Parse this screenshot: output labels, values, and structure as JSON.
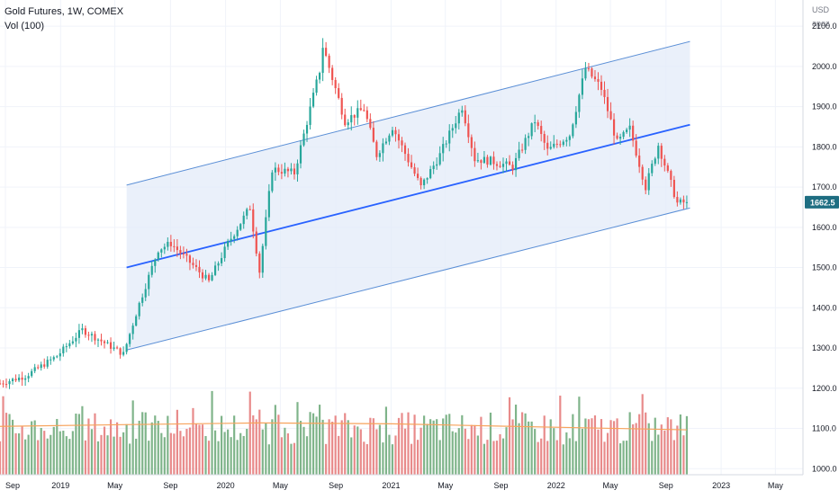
{
  "legend": {
    "symbol_line": "Gold Futures, 1W, COMEX",
    "volume_line": "Vol (100)"
  },
  "price_axis": {
    "currency": "USD",
    "scale_mode": "apoz",
    "tick_labels": [
      "2100.0",
      "2000.0",
      "1900.0",
      "1800.0",
      "1700.0",
      "1600.0",
      "1500.0",
      "1400.0",
      "1300.0",
      "1200.0",
      "1100.0",
      "1000.0"
    ],
    "last_price_label": "1662.5"
  },
  "time_axis": {
    "tick_labels": [
      "Sep",
      "2019",
      "May",
      "Sep",
      "2020",
      "May",
      "Sep",
      "2021",
      "May",
      "Sep",
      "2022",
      "May",
      "Sep",
      "2023",
      "May"
    ]
  },
  "colors": {
    "up_candle": "#26a69a",
    "down_candle": "#ef5350",
    "up_volume": "#7fb48a",
    "down_volume": "#e88a8a",
    "volume_ma": "#f7a35c",
    "channel_line": "#5b8fd6",
    "channel_mid": "#2962ff",
    "channel_fill": "#e3ebf8",
    "last_price_badge": "#1e6e82",
    "grid": "#f0f3fa"
  },
  "chart_data": {
    "type": "candlestick",
    "timeframe": "1W",
    "instrument": "Gold Futures",
    "exchange": "COMEX",
    "y_range": [
      985,
      2165
    ],
    "x_range": [
      "2018-08-20",
      "2023-07-01"
    ],
    "volume_indicator": "Vol (100)",
    "last_price": 1662.5,
    "trend_channel": {
      "start_date": "2019-05-27",
      "end_date": "2022-10-24",
      "lower_start": 1295,
      "lower_end": 1648,
      "middle_start": 1500,
      "middle_end": 1855,
      "upper_start": 1705,
      "upper_end": 2062
    },
    "price_path": [
      {
        "date": "2018-08-20",
        "close": 1212
      },
      {
        "date": "2018-10-15",
        "close": 1230
      },
      {
        "date": "2018-12-24",
        "close": 1280
      },
      {
        "date": "2019-02-18",
        "close": 1345
      },
      {
        "date": "2019-05-20",
        "close": 1285
      },
      {
        "date": "2019-06-24",
        "close": 1410
      },
      {
        "date": "2019-08-05",
        "close": 1545
      },
      {
        "date": "2019-09-02",
        "close": 1560
      },
      {
        "date": "2019-10-21",
        "close": 1505
      },
      {
        "date": "2019-11-25",
        "close": 1465
      },
      {
        "date": "2020-01-06",
        "close": 1560
      },
      {
        "date": "2020-02-24",
        "close": 1650
      },
      {
        "date": "2020-03-16",
        "close": 1490
      },
      {
        "date": "2020-04-13",
        "close": 1745
      },
      {
        "date": "2020-06-01",
        "close": 1735
      },
      {
        "date": "2020-07-27",
        "close": 1990
      },
      {
        "date": "2020-08-03",
        "close": 2050
      },
      {
        "date": "2020-09-21",
        "close": 1865
      },
      {
        "date": "2020-11-02",
        "close": 1895
      },
      {
        "date": "2020-11-30",
        "close": 1780
      },
      {
        "date": "2021-01-04",
        "close": 1850
      },
      {
        "date": "2021-03-08",
        "close": 1700
      },
      {
        "date": "2021-04-19",
        "close": 1780
      },
      {
        "date": "2021-06-07",
        "close": 1900
      },
      {
        "date": "2021-07-05",
        "close": 1770
      },
      {
        "date": "2021-08-09",
        "close": 1765
      },
      {
        "date": "2021-09-27",
        "close": 1750
      },
      {
        "date": "2021-11-15",
        "close": 1865
      },
      {
        "date": "2021-12-13",
        "close": 1790
      },
      {
        "date": "2022-01-31",
        "close": 1830
      },
      {
        "date": "2022-03-07",
        "close": 1995
      },
      {
        "date": "2022-04-11",
        "close": 1945
      },
      {
        "date": "2022-05-16",
        "close": 1810
      },
      {
        "date": "2022-06-13",
        "close": 1845
      },
      {
        "date": "2022-07-18",
        "close": 1700
      },
      {
        "date": "2022-08-15",
        "close": 1805
      },
      {
        "date": "2022-09-26",
        "close": 1660
      },
      {
        "date": "2022-10-17",
        "close": 1662.5
      }
    ],
    "volume_ma_path": [
      {
        "date": "2018-08-20",
        "value": 0.56
      },
      {
        "date": "2019-05-20",
        "value": 0.58
      },
      {
        "date": "2020-03-16",
        "value": 0.6
      },
      {
        "date": "2021-01-04",
        "value": 0.59
      },
      {
        "date": "2021-09-27",
        "value": 0.56
      },
      {
        "date": "2022-10-17",
        "value": 0.52
      }
    ]
  }
}
